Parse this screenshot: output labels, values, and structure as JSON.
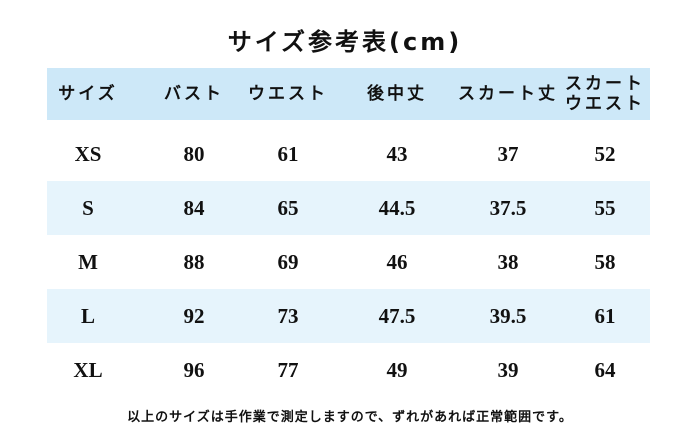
{
  "title": "サイズ参考表(cm)",
  "table": {
    "header": [
      "サイズ",
      "バスト",
      "ウエスト",
      "後中丈",
      "スカート丈",
      [
        "スカート",
        "ウエスト"
      ]
    ],
    "rows": [
      [
        "XS",
        "80",
        "61",
        "43",
        "37",
        "52"
      ],
      [
        "S",
        "84",
        "65",
        "44.5",
        "37.5",
        "55"
      ],
      [
        "M",
        "88",
        "69",
        "46",
        "38",
        "58"
      ],
      [
        "L",
        "92",
        "73",
        "47.5",
        "39.5",
        "61"
      ],
      [
        "XL",
        "96",
        "77",
        "49",
        "39",
        "64"
      ]
    ]
  },
  "note": "以上のサイズは手作業で測定しますので、ずれがあれば正常範囲です。"
}
